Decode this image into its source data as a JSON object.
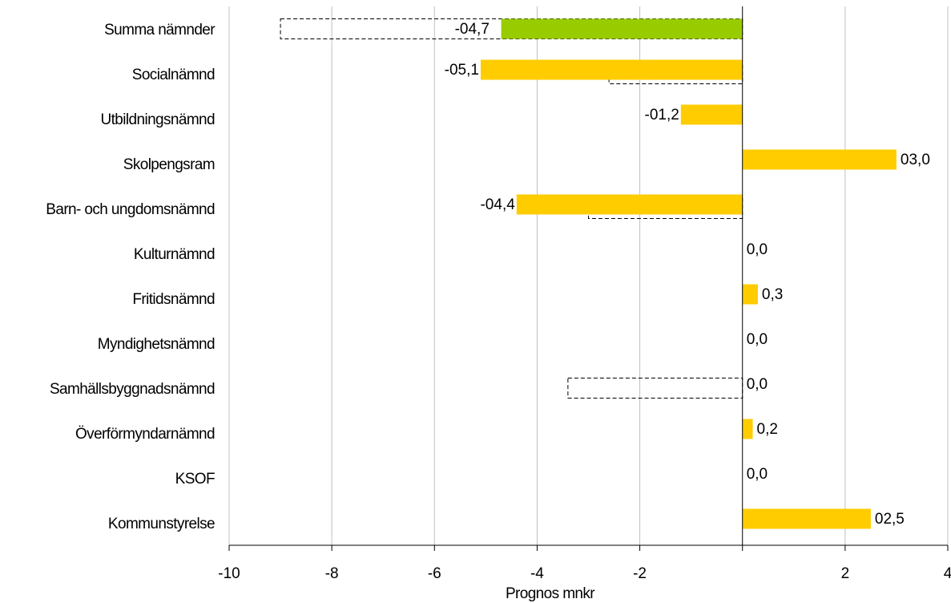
{
  "chart_data": {
    "type": "bar",
    "orientation": "horizontal",
    "title": "",
    "xlabel": "Prognos mnkr",
    "ylabel": "",
    "xlim": [
      -10,
      4
    ],
    "xticks": [
      -10,
      -8,
      -6,
      -4,
      -2,
      2,
      4
    ],
    "xtick_labels": [
      "-10",
      "-8",
      "-6",
      "-4",
      "-2",
      "2",
      "4"
    ],
    "grid": "vertical",
    "legend": "none",
    "categories": [
      "Summa nämnder",
      "Socialnämnd",
      "Utbildningsnämnd",
      "Skolpengsram",
      "Barn- och ungdomsnämnd",
      "Kulturnämnd",
      "Fritidsnämnd",
      "Myndighetsnämnd",
      "Samhällsbyggnadsnämnd",
      "Överförmyndarnämnd",
      "KSOF",
      "Kommunstyrelse"
    ],
    "values": [
      -4.7,
      -5.1,
      -1.2,
      3.0,
      -4.4,
      0.0,
      0.3,
      0.0,
      0.0,
      0.2,
      0.0,
      2.5
    ],
    "data_labels": [
      "-04,7",
      "-05,1",
      "-01,2",
      "03,0",
      "-04,4",
      "0,0",
      "0,3",
      "0,0",
      "0,0",
      "0,2",
      "0,0",
      "02,5"
    ],
    "reference_values": [
      -9.0,
      -2.6,
      0.0,
      0.0,
      -3.0,
      0.0,
      0.0,
      0.0,
      -3.4,
      0.0,
      0.0,
      0.0
    ],
    "colors": {
      "total_bar": "#99cc00",
      "bar": "#ffcc00",
      "grid": "#c0c0c0",
      "axis": "#000000",
      "reference_outline": "#000000"
    }
  }
}
